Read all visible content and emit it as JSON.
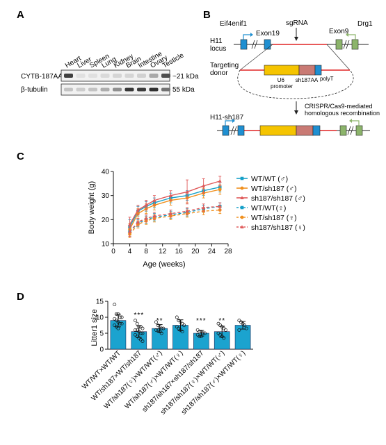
{
  "panel_letters": {
    "a": "A",
    "b": "B",
    "c": "C",
    "d": "D"
  },
  "panel_a": {
    "lanes": [
      "Heart",
      "Liver",
      "Spleen",
      "Lung",
      "Kidney",
      "Brain",
      "Intestine",
      "Ovary",
      "Testicle"
    ],
    "rows": [
      {
        "label": "CYTB-187AA",
        "size": "~21 kDa"
      },
      {
        "label": "β-tubulin",
        "size": "55 kDa"
      }
    ],
    "band_intensity": {
      "CYTB-187AA": [
        0.78,
        0.05,
        0.05,
        0.08,
        0.1,
        0.1,
        0.12,
        0.3,
        0.72
      ],
      "β-tubulin": [
        0.18,
        0.14,
        0.18,
        0.28,
        0.42,
        0.82,
        0.8,
        0.85,
        0.55
      ]
    }
  },
  "panel_b": {
    "eif4enif1": "Eif4enif1",
    "exon19": "Exon19",
    "sgrna": "sgRNA",
    "exon9": "Exon9",
    "drg1": "Drg1",
    "h11_locus": "H11\nlocus",
    "targeting_donor": "Targeting\ndonor",
    "u6_promoter": "U6\npromoter",
    "sh187aa": "sh187AA",
    "polyt": "polyT",
    "h11_sh187": "H11-sh187",
    "crispr": "CRISPR/Cas9-mediated\nhomologous recombination",
    "colors": {
      "exon_blue": "#1f8fd1",
      "exon_green": "#8cb46b",
      "u6": "#f5c400",
      "sh187": "#c97a74",
      "line_red": "#e02424"
    }
  },
  "chart_data": [
    {
      "type": "line",
      "xlabel": "Age (weeks)",
      "ylabel": "Body weight (g)",
      "xlim": [
        0,
        28
      ],
      "ylim": [
        10,
        40
      ],
      "xticks": [
        0,
        4,
        8,
        12,
        16,
        20,
        24,
        28
      ],
      "yticks": [
        10,
        20,
        30,
        40
      ],
      "x": [
        4,
        6,
        8,
        10,
        14,
        18,
        22,
        26
      ],
      "legend_position": "right",
      "series": [
        {
          "name": "WT/WT (♂)",
          "color": "#16a0c8",
          "style": "solid",
          "marker": "square",
          "values": [
            17,
            23.5,
            25.5,
            27,
            29,
            30,
            32,
            33.5
          ],
          "err": [
            3,
            2,
            2,
            2,
            2,
            2,
            2,
            2
          ]
        },
        {
          "name": "WT/sh187 (♂)",
          "color": "#f0901e",
          "style": "solid",
          "marker": "circle",
          "values": [
            16,
            22.5,
            24.5,
            26,
            28,
            29,
            31,
            32.5
          ],
          "err": [
            2.5,
            2,
            2,
            2,
            2,
            2,
            2,
            2
          ]
        },
        {
          "name": "sh187/sh187 (♂)",
          "color": "#e05a5a",
          "style": "solid",
          "marker": "triangle",
          "values": [
            18,
            24,
            26,
            28,
            30,
            31.5,
            34,
            36
          ],
          "err": [
            3,
            2,
            2,
            2,
            2,
            5,
            3,
            2
          ]
        },
        {
          "name": "WT/WT(♀)",
          "color": "#16a0c8",
          "style": "dashed",
          "marker": "square",
          "values": [
            15,
            18.5,
            20,
            21,
            22,
            23,
            24.5,
            25.5
          ],
          "err": [
            2,
            1.5,
            1.5,
            1.5,
            1.5,
            1.5,
            1.5,
            1.5
          ]
        },
        {
          "name": "WT/sh187 (♀)",
          "color": "#f0901e",
          "style": "dashed",
          "marker": "circle",
          "values": [
            14,
            18,
            19.5,
            20.5,
            21.5,
            22.5,
            23.5,
            24
          ],
          "err": [
            1.5,
            1.5,
            1.5,
            1.5,
            1.5,
            1.5,
            1.5,
            1.5
          ]
        },
        {
          "name": "sh187/sh187 (♀)",
          "color": "#e05a5a",
          "style": "dashed",
          "marker": "triangle",
          "values": [
            15,
            19,
            20.5,
            21.5,
            22.5,
            23.5,
            25,
            25.5
          ],
          "err": [
            2,
            1.5,
            1.5,
            1.5,
            1.5,
            1.5,
            1.5,
            1.5
          ]
        }
      ]
    },
    {
      "type": "bar",
      "ylabel": "Litter1 size",
      "ylim": [
        0,
        15
      ],
      "yticks": [
        0,
        5,
        10,
        15
      ],
      "bar_color": "#1ba3cf",
      "categories": [
        "WT/WT×WT/WT",
        "WT/sh187×WT/sh187",
        "WT/sh187(♀)×WT/WT(♂)",
        "WT/sh187(♂)×WT/WT(♀)",
        "sh187/sh187×sh187/sh187",
        "sh187/sh187(♀)×WT/WT(♂)",
        "sh187/sh187(♂)×WT/WT(♀)"
      ],
      "values": [
        9,
        5.5,
        6.5,
        7.5,
        5,
        5.5,
        7.5
      ],
      "sd": [
        2,
        1.8,
        1.2,
        1.7,
        0.9,
        1.7,
        1.2
      ],
      "significance": [
        "",
        "***",
        "**",
        "",
        "***",
        "**",
        ""
      ],
      "points": [
        [
          14,
          11,
          11,
          10,
          10,
          9.5,
          9,
          8.5,
          8,
          8,
          7.5,
          7,
          6.5
        ],
        [
          9,
          8,
          7,
          7,
          6.5,
          6,
          6,
          5.5,
          5,
          5,
          4.5,
          4,
          3.5,
          3,
          2.5
        ],
        [
          8.5,
          7.5,
          7,
          6.5,
          6.5,
          6,
          6,
          5.5,
          5
        ],
        [
          10,
          9,
          8.5,
          8,
          7.5,
          7,
          6.5,
          6,
          5.5
        ],
        [
          6,
          5.5,
          5.5,
          5,
          5,
          4.5,
          4,
          4
        ],
        [
          8,
          7.5,
          7,
          6.5,
          6,
          5,
          4.5,
          4,
          3.5
        ],
        [
          9,
          8.5,
          8,
          7.5,
          6.5,
          6
        ]
      ]
    }
  ]
}
